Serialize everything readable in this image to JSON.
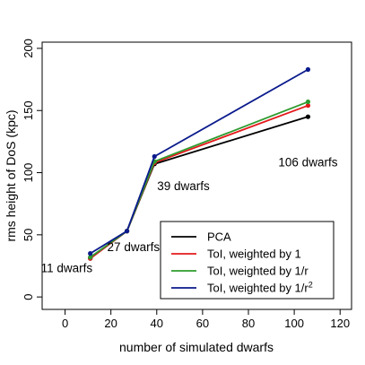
{
  "chart_data": {
    "type": "line",
    "xlabel": "number of simulated dwarfs",
    "ylabel": "rms height of DoS (kpc)",
    "xlim": [
      -10,
      125
    ],
    "ylim": [
      -10,
      205
    ],
    "xticks": [
      0,
      20,
      40,
      60,
      80,
      100,
      120
    ],
    "yticks": [
      0,
      50,
      100,
      150,
      200
    ],
    "x": [
      11,
      27,
      39,
      106
    ],
    "series": [
      {
        "name": "PCA",
        "color": "#000000",
        "values": [
          31,
          53,
          107,
          145
        ]
      },
      {
        "name": "ToI, weighted by 1",
        "color": "#e41a1c",
        "values": [
          31,
          53,
          108,
          154
        ]
      },
      {
        "name": "ToI, weighted by 1/r",
        "color": "#2e9b2e",
        "values": [
          32,
          53,
          109,
          157
        ]
      },
      {
        "name": "ToI, weighted by 1/r",
        "name_sup": "2",
        "color": "#0a1a8c",
        "values": [
          35,
          53,
          113,
          183
        ]
      }
    ],
    "annotations": [
      {
        "text": "11 dwarfs",
        "x": 11,
        "y": 20
      },
      {
        "text": "27 dwarfs",
        "x": 27,
        "y": 37
      },
      {
        "text": "39 dwarfs",
        "x": 39,
        "y": 86
      },
      {
        "text": "106 dwarfs",
        "x": 106,
        "y": 105
      }
    ],
    "legend_position": "bottom-right",
    "grid": false
  }
}
